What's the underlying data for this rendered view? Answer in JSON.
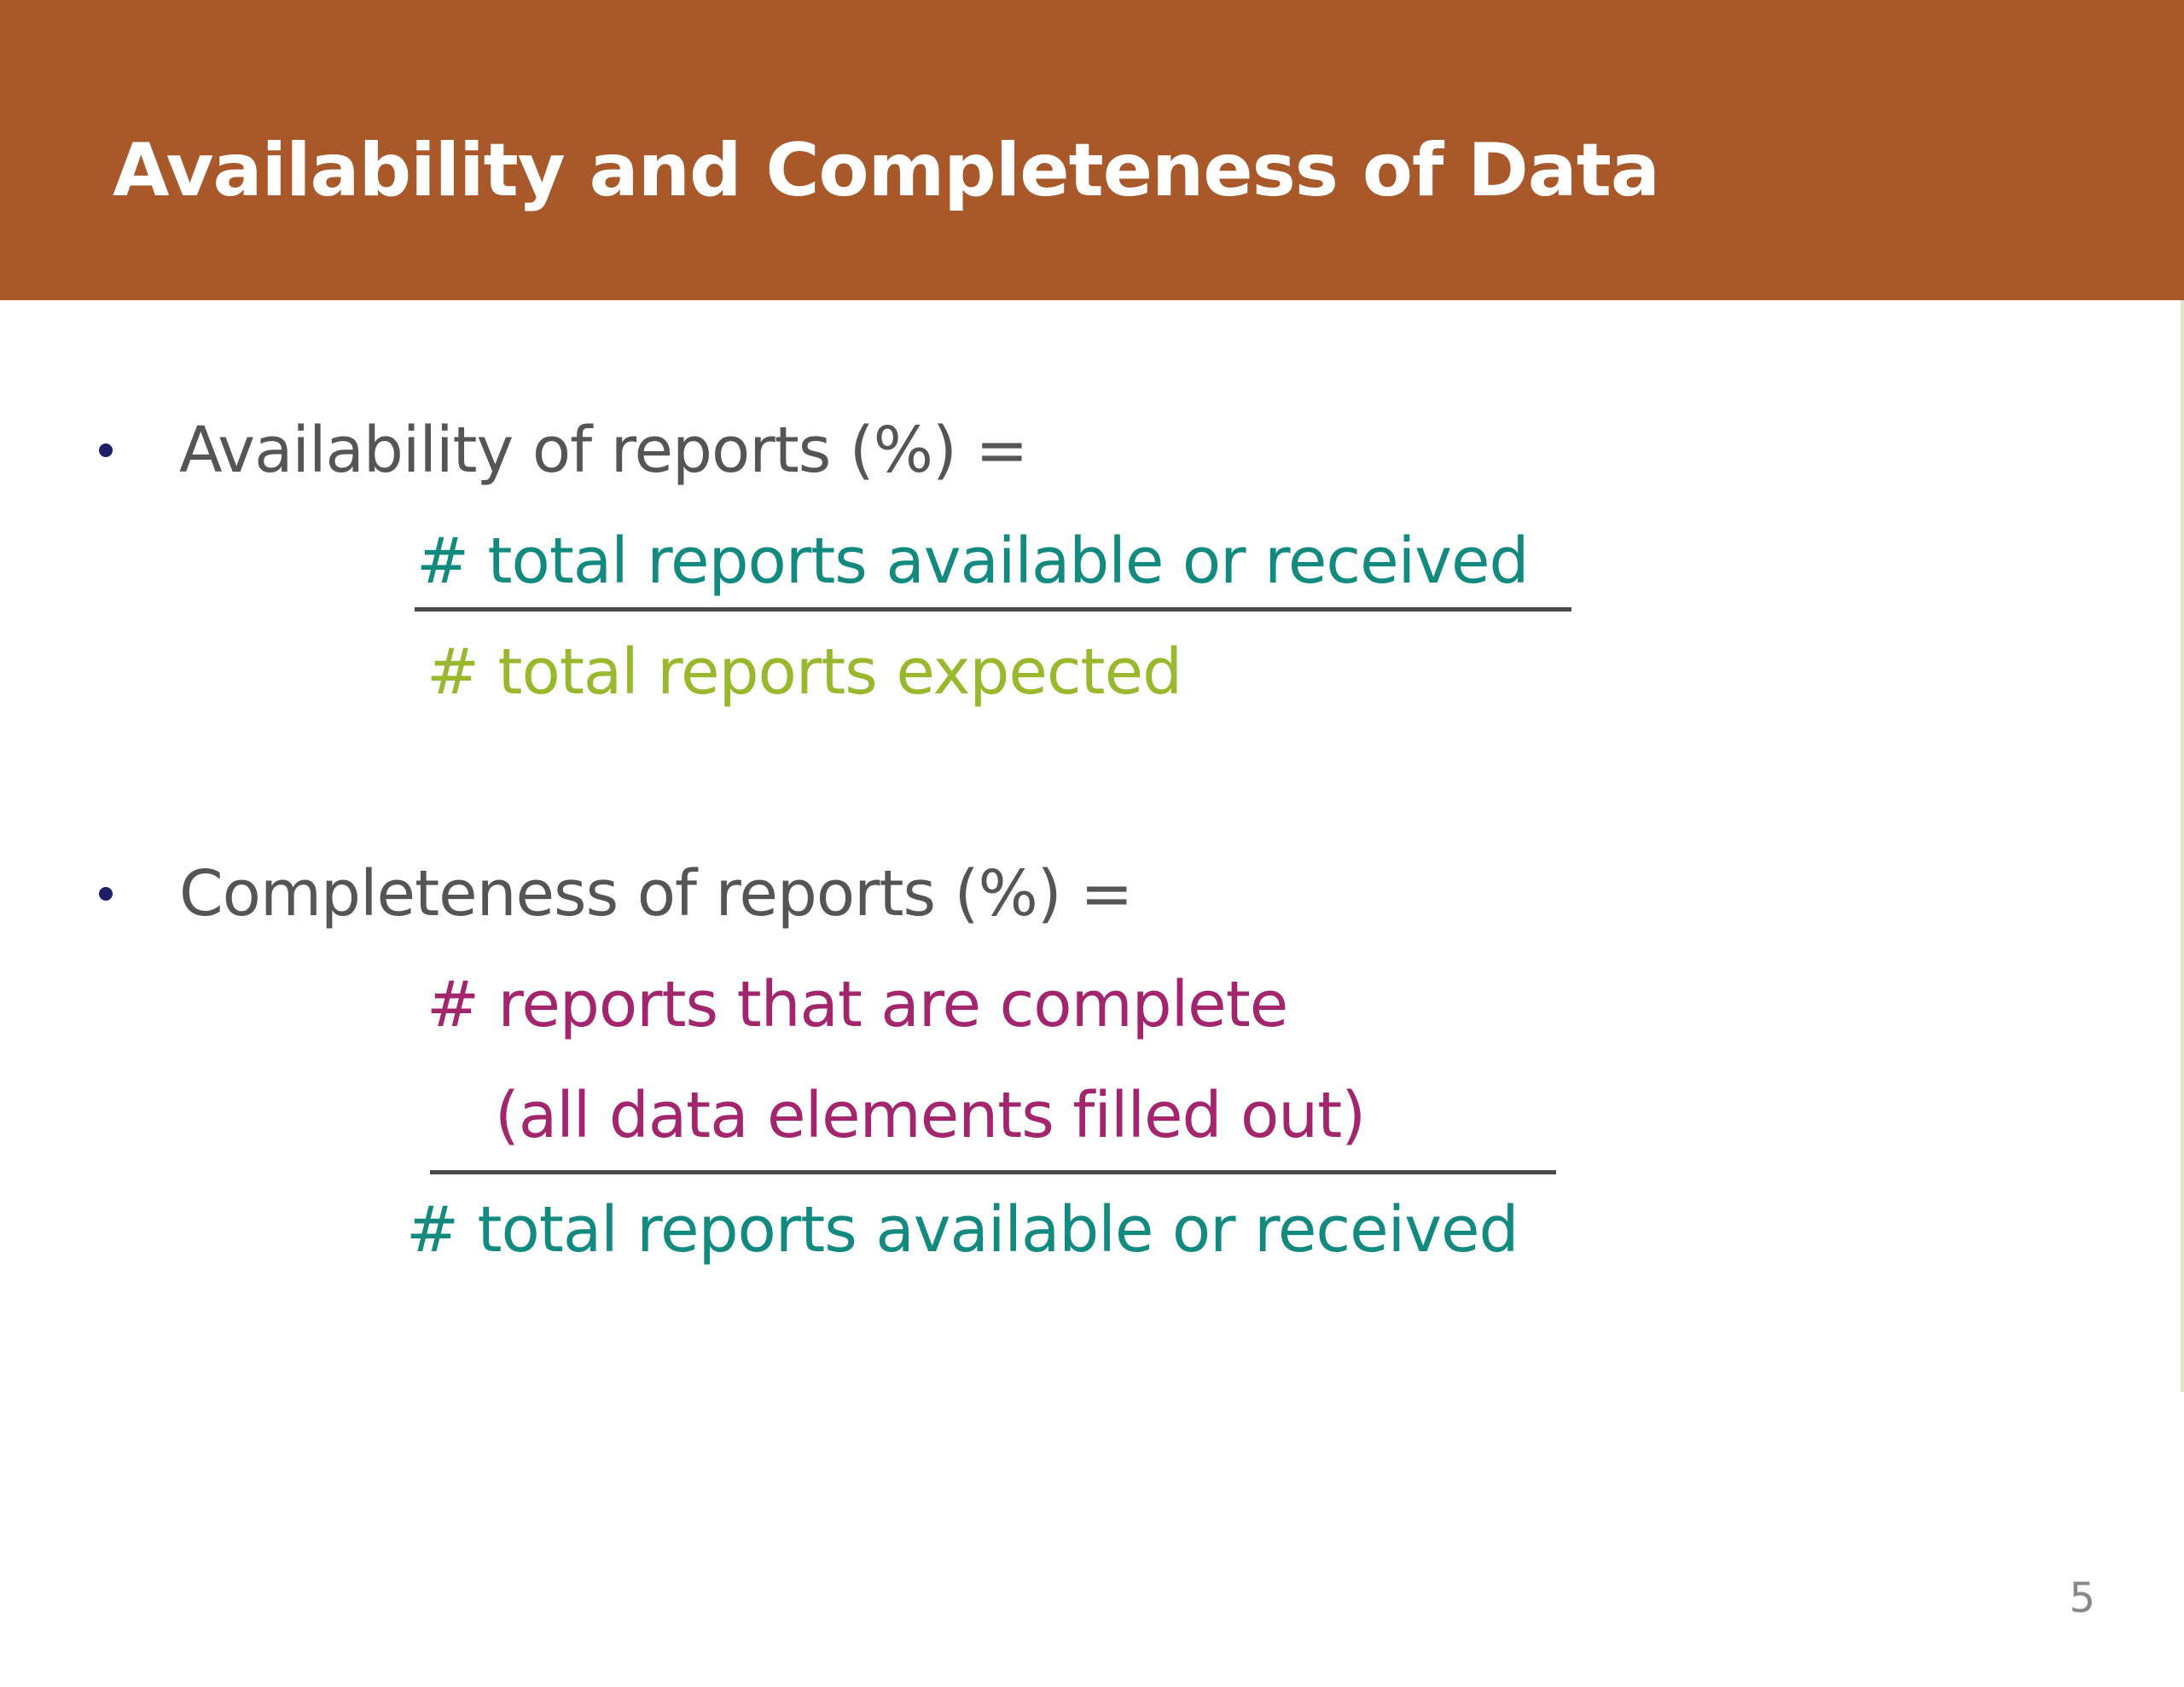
{
  "slide": {
    "title": "Availability and Completeness of Data",
    "page_number": "5",
    "colors": {
      "header_band": "#a9582a",
      "title_text": "#ffffff",
      "body_text": "#555555",
      "bullet": "#1f1f66",
      "teal": "#138a80",
      "lime": "#9ab82e",
      "magenta": "#a2256e"
    }
  },
  "availability": {
    "label": "Availability of reports (%) =",
    "numerator": "# total reports available or received",
    "denominator": "# total reports expected"
  },
  "completeness": {
    "label": "Completeness of reports (%) =",
    "numerator_line1": "# reports that are complete",
    "numerator_line2": "(all data elements filled out)",
    "denominator": "# total reports available or received"
  }
}
